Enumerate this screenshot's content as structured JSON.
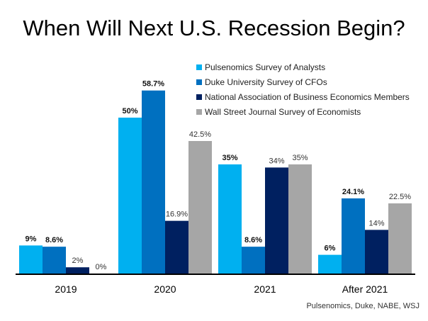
{
  "chart_data": {
    "type": "bar",
    "title": "When Will Next U.S. Recession Begin?",
    "categories": [
      "2019",
      "2020",
      "2021",
      "After 2021"
    ],
    "series": [
      {
        "name": "Pulsenomics Survey of Analysts",
        "color": "#00b0f0",
        "values": [
          9,
          50,
          35,
          6
        ],
        "labels": [
          "9%",
          "50%",
          "35%",
          "6%"
        ]
      },
      {
        "name": "Duke University Survey of CFOs",
        "color": "#0070c0",
        "values": [
          8.6,
          58.7,
          8.6,
          24.1
        ],
        "labels": [
          "8.6%",
          "58.7%",
          "8.6%",
          "24.1%"
        ]
      },
      {
        "name": "National Association of Business Economics Members",
        "color": "#002060",
        "values": [
          2,
          16.9,
          34,
          14
        ],
        "labels": [
          "2%",
          "16.9%",
          "34%",
          "14%"
        ]
      },
      {
        "name": "Wall Street Journal Survey of Economists",
        "color": "#a6a6a6",
        "values": [
          0,
          42.5,
          35,
          22.5
        ],
        "labels": [
          "0%",
          "42.5%",
          "35%",
          "22.5%"
        ]
      }
    ],
    "legend": "top-right",
    "grid": false,
    "ylim": [
      0,
      60
    ],
    "source": "Pulsenomics, Duke, NABE, WSJ"
  }
}
